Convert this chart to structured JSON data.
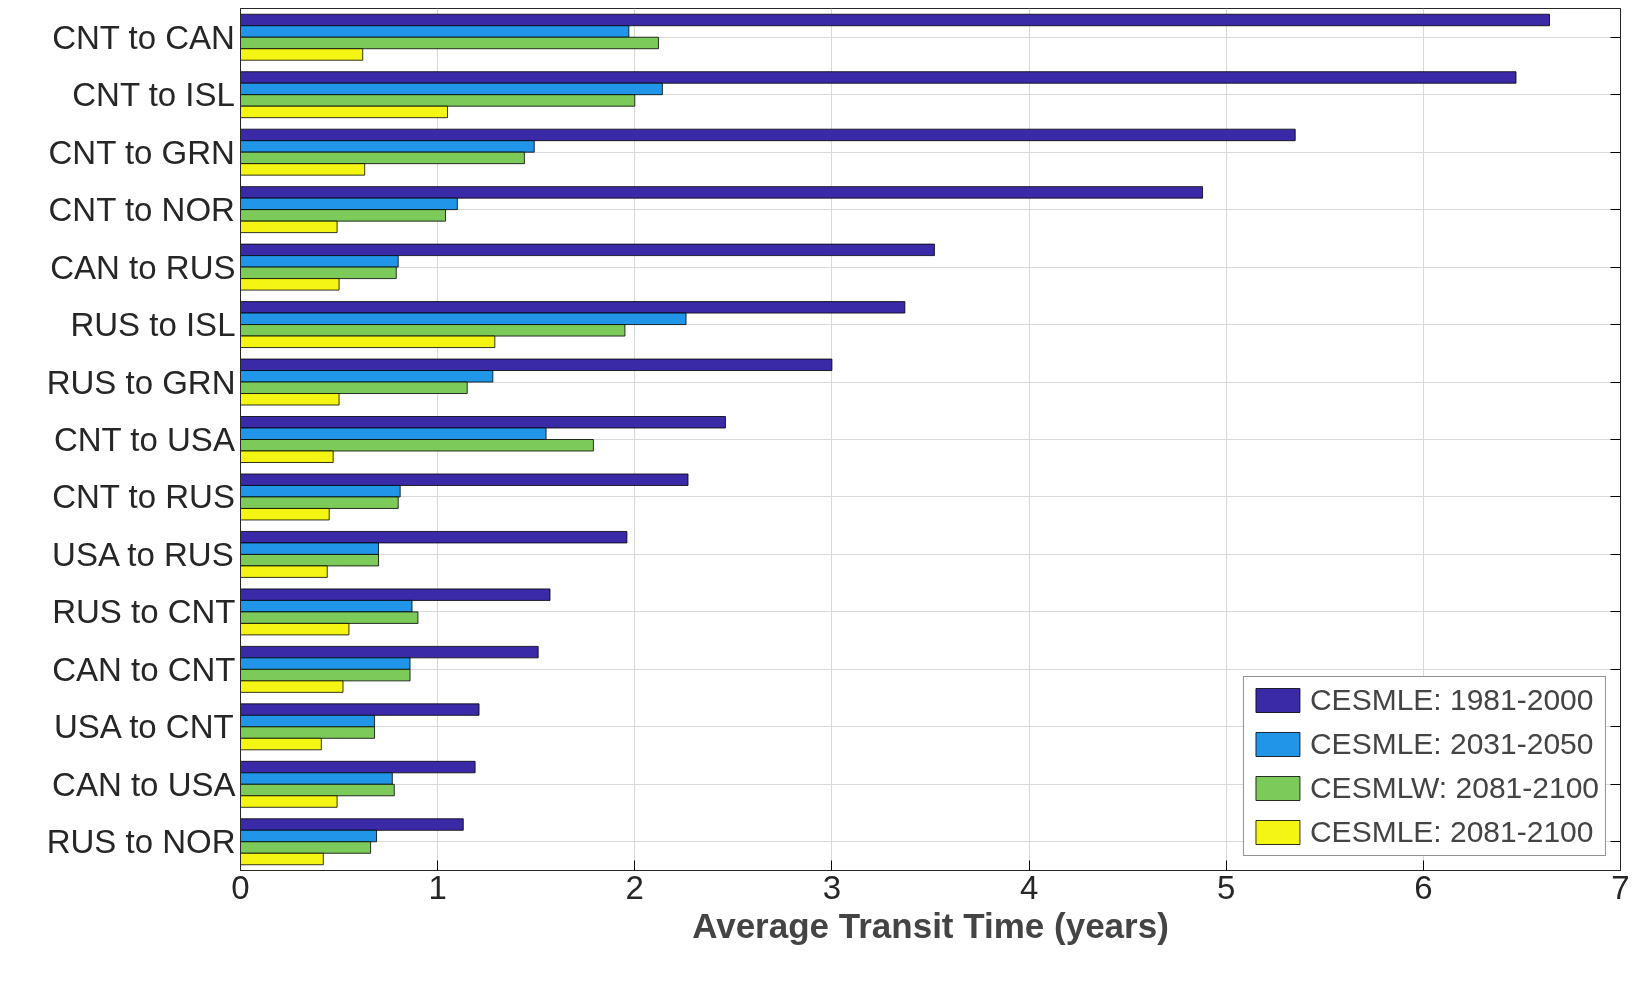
{
  "chart_data": {
    "type": "bar",
    "orientation": "horizontal",
    "xlabel": "Average Transit Time (years)",
    "categories": [
      "CNT to CAN",
      "CNT to ISL",
      "CNT to GRN",
      "CNT to NOR",
      "CAN to RUS",
      "RUS to ISL",
      "RUS to GRN",
      "CNT to USA",
      "CNT to RUS",
      "USA to RUS",
      "RUS to CNT",
      "CAN to CNT",
      "USA to CNT",
      "CAN to USA",
      "RUS to NOR"
    ],
    "series": [
      {
        "name": "CESMLE: 1981-2000",
        "color": "#3b2aa8",
        "values": [
          6.64,
          6.47,
          5.35,
          4.88,
          3.52,
          3.37,
          3.0,
          2.46,
          2.27,
          1.96,
          1.57,
          1.51,
          1.21,
          1.19,
          1.13
        ]
      },
      {
        "name": "CESMLE: 2031-2050",
        "color": "#2196e8",
        "values": [
          1.97,
          2.14,
          1.49,
          1.1,
          0.8,
          2.26,
          1.28,
          1.55,
          0.81,
          0.7,
          0.87,
          0.86,
          0.68,
          0.77,
          0.69
        ]
      },
      {
        "name": "CESMLW: 2081-2100",
        "color": "#7ccb5a",
        "values": [
          2.12,
          2.0,
          1.44,
          1.04,
          0.79,
          1.95,
          1.15,
          1.79,
          0.8,
          0.7,
          0.9,
          0.86,
          0.68,
          0.78,
          0.66
        ]
      },
      {
        "name": "CESMLE: 2081-2100",
        "color": "#f5f514",
        "values": [
          0.62,
          1.05,
          0.63,
          0.49,
          0.5,
          1.29,
          0.5,
          0.47,
          0.45,
          0.44,
          0.55,
          0.52,
          0.41,
          0.49,
          0.42
        ]
      }
    ],
    "xlim": [
      0,
      7
    ],
    "xticks": [
      0,
      1,
      2,
      3,
      4,
      5,
      6,
      7
    ],
    "grid": true,
    "legend": "bottom right"
  }
}
